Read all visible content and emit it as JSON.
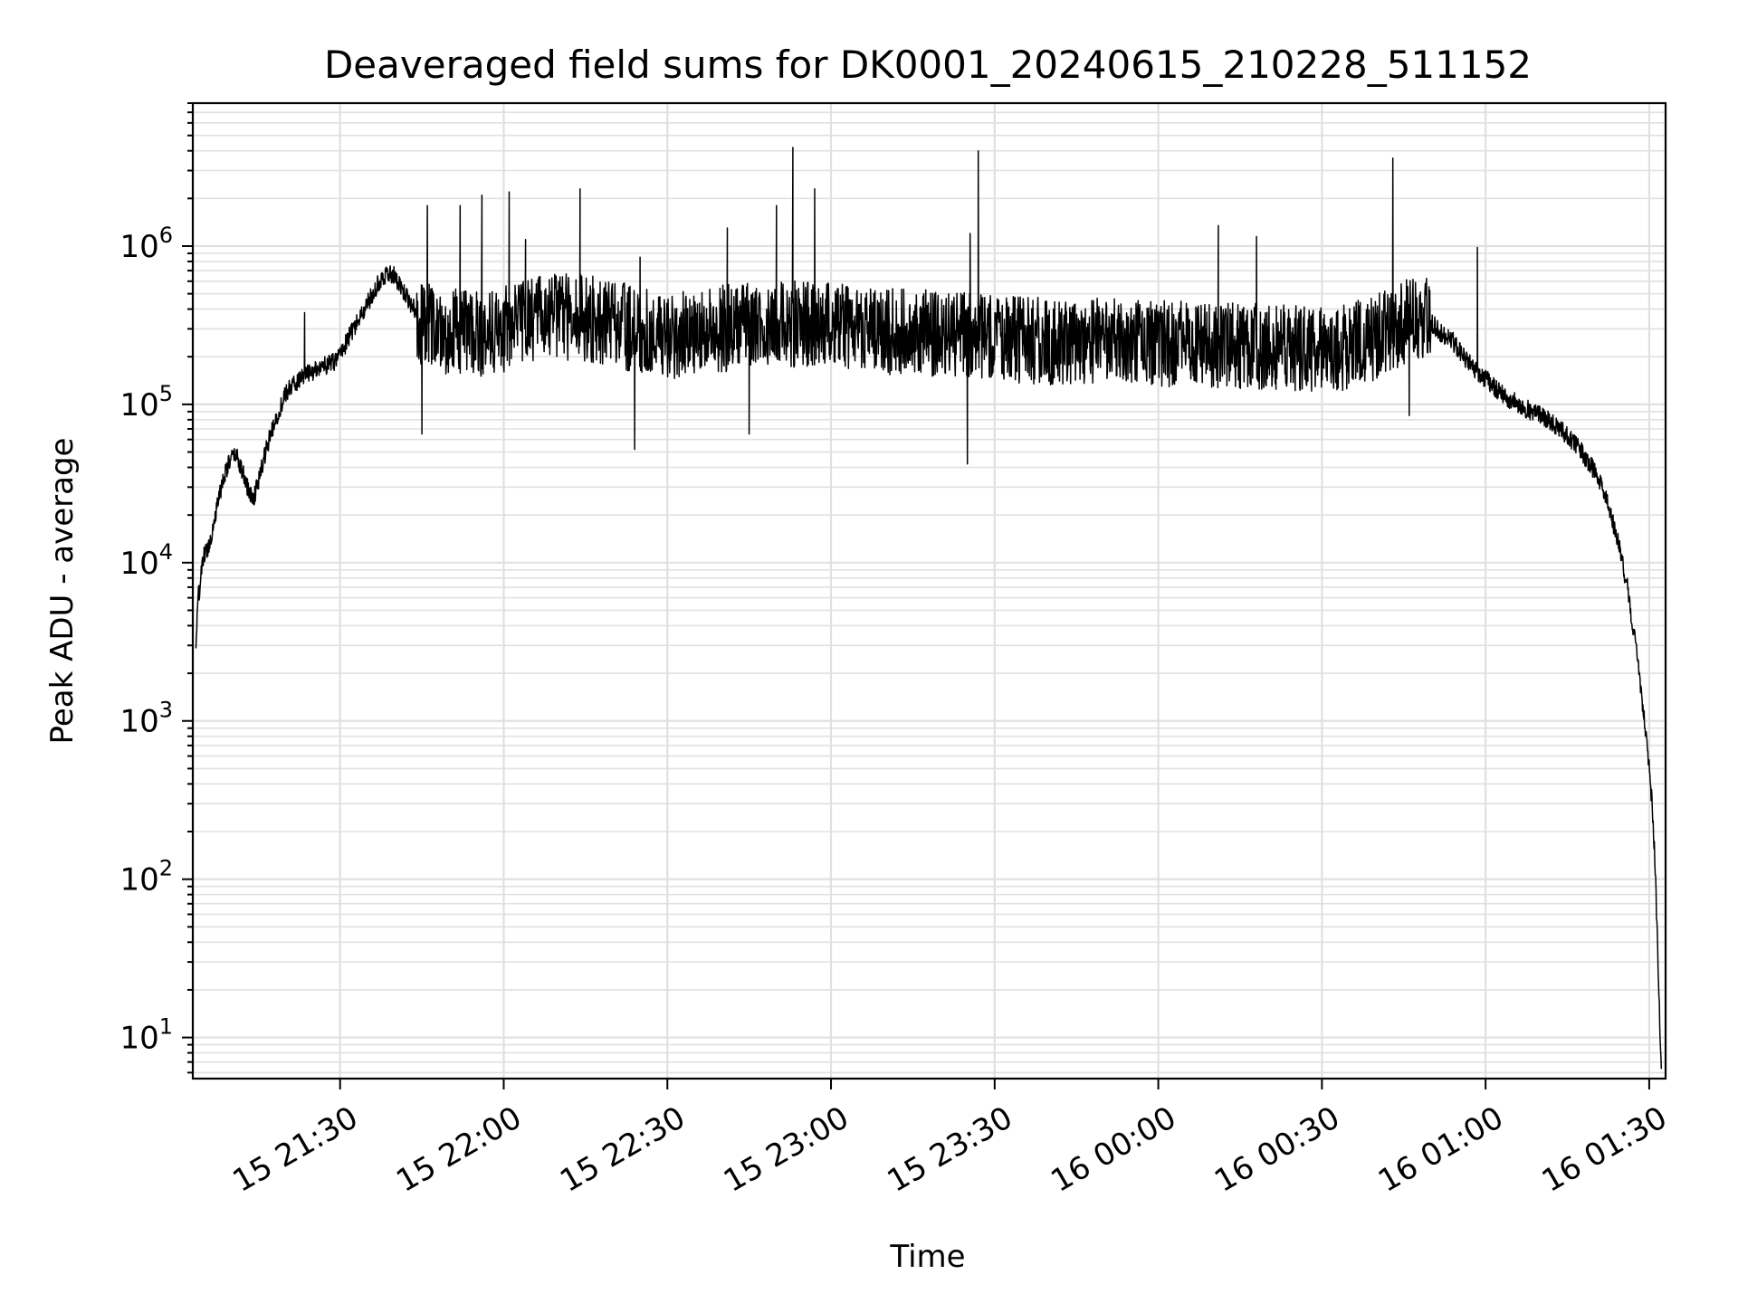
{
  "chart_data": {
    "type": "line",
    "title": "Deaveraged field sums for DK0001_20240615_210228_511152",
    "xlabel": "Time",
    "ylabel": "Peak ADU - average",
    "yscale": "log",
    "ylim": [
      5.5,
      8000000
    ],
    "xlim": [
      "2024-06-15 21:03:00",
      "2024-06-16 01:33:00"
    ],
    "grid": "on (major and minor)",
    "x_ticks": [
      {
        "t": "2024-06-15 21:30",
        "label": "15 21:30"
      },
      {
        "t": "2024-06-15 22:00",
        "label": "15 22:00"
      },
      {
        "t": "2024-06-15 22:30",
        "label": "15 22:30"
      },
      {
        "t": "2024-06-15 23:00",
        "label": "15 23:00"
      },
      {
        "t": "2024-06-15 23:30",
        "label": "15 23:30"
      },
      {
        "t": "2024-06-16 00:00",
        "label": "16 00:00"
      },
      {
        "t": "2024-06-16 00:30",
        "label": "16 00:30"
      },
      {
        "t": "2024-06-16 01:00",
        "label": "16 01:00"
      },
      {
        "t": "2024-06-16 01:30",
        "label": "16 01:30"
      }
    ],
    "y_ticks": [
      {
        "value": 10,
        "base": "10",
        "exp": "1"
      },
      {
        "value": 100,
        "base": "10",
        "exp": "2"
      },
      {
        "value": 1000,
        "base": "10",
        "exp": "3"
      },
      {
        "value": 10000,
        "base": "10",
        "exp": "4"
      },
      {
        "value": 100000,
        "base": "10",
        "exp": "5"
      },
      {
        "value": 1000000,
        "base": "10",
        "exp": "6"
      }
    ],
    "series": [
      {
        "color": "#000000",
        "points": [
          [
            "2024-06-15 21:03:30",
            2800
          ],
          [
            "2024-06-15 21:04:00",
            6000
          ],
          [
            "2024-06-15 21:05:00",
            11000
          ],
          [
            "2024-06-15 21:06:00",
            13000
          ],
          [
            "2024-06-15 21:07:00",
            19000
          ],
          [
            "2024-06-15 21:08:00",
            28000
          ],
          [
            "2024-06-15 21:09:00",
            38000
          ],
          [
            "2024-06-15 21:10:00",
            45000
          ],
          [
            "2024-06-15 21:11:00",
            48000
          ],
          [
            "2024-06-15 21:12:00",
            38000
          ],
          [
            "2024-06-15 21:13:00",
            30000
          ],
          [
            "2024-06-15 21:14:00",
            25000
          ],
          [
            "2024-06-15 21:15:00",
            32000
          ],
          [
            "2024-06-15 21:16:00",
            45000
          ],
          [
            "2024-06-15 21:17:00",
            60000
          ],
          [
            "2024-06-15 21:18:00",
            75000
          ],
          [
            "2024-06-15 21:19:00",
            95000
          ],
          [
            "2024-06-15 21:20:00",
            115000
          ],
          [
            "2024-06-15 21:21:00",
            130000
          ],
          [
            "2024-06-15 21:22:00",
            140000
          ],
          [
            "2024-06-15 21:23:00",
            145000
          ],
          [
            "2024-06-15 21:24:00",
            155000
          ],
          [
            "2024-06-15 21:25:00",
            160000
          ],
          [
            "2024-06-15 21:26:00",
            170000
          ],
          [
            "2024-06-15 21:27:00",
            175000
          ],
          [
            "2024-06-15 21:28:00",
            180000
          ],
          [
            "2024-06-15 21:29:00",
            185000
          ],
          [
            "2024-06-15 21:30:00",
            210000
          ],
          [
            "2024-06-15 21:31:00",
            240000
          ],
          [
            "2024-06-15 21:32:00",
            280000
          ],
          [
            "2024-06-15 21:33:00",
            320000
          ],
          [
            "2024-06-15 21:34:00",
            370000
          ],
          [
            "2024-06-15 21:35:00",
            430000
          ],
          [
            "2024-06-15 21:36:00",
            500000
          ],
          [
            "2024-06-15 21:37:00",
            580000
          ],
          [
            "2024-06-15 21:38:00",
            650000
          ],
          [
            "2024-06-15 21:39:00",
            690000
          ],
          [
            "2024-06-15 21:40:00",
            640000
          ],
          [
            "2024-06-15 21:41:00",
            560000
          ],
          [
            "2024-06-15 21:42:00",
            500000
          ],
          [
            "2024-06-15 21:43:00",
            430000
          ],
          [
            "2024-06-15 21:44:00",
            380000
          ],
          [
            "2024-06-15 21:45:00",
            330000
          ],
          [
            "2024-06-15 21:47:00",
            300000
          ],
          [
            "2024-06-15 21:50:00",
            290000
          ],
          [
            "2024-06-15 21:55:00",
            280000
          ],
          [
            "2024-06-15 22:00:00",
            300000
          ],
          [
            "2024-06-15 22:05:00",
            340000
          ],
          [
            "2024-06-15 22:10:00",
            360000
          ],
          [
            "2024-06-15 22:15:00",
            350000
          ],
          [
            "2024-06-15 22:20:00",
            330000
          ],
          [
            "2024-06-15 22:25:00",
            290000
          ],
          [
            "2024-06-15 22:30:00",
            270000
          ],
          [
            "2024-06-15 22:35:00",
            280000
          ],
          [
            "2024-06-15 22:40:00",
            300000
          ],
          [
            "2024-06-15 22:45:00",
            320000
          ],
          [
            "2024-06-15 22:50:00",
            330000
          ],
          [
            "2024-06-15 22:55:00",
            320000
          ],
          [
            "2024-06-15 23:00:00",
            310000
          ],
          [
            "2024-06-15 23:10:00",
            290000
          ],
          [
            "2024-06-15 23:20:00",
            280000
          ],
          [
            "2024-06-15 23:30:00",
            260000
          ],
          [
            "2024-06-15 23:40:00",
            250000
          ],
          [
            "2024-06-15 23:50:00",
            250000
          ],
          [
            "2024-06-16 00:00:00",
            240000
          ],
          [
            "2024-06-16 00:10:00",
            240000
          ],
          [
            "2024-06-16 00:20:00",
            230000
          ],
          [
            "2024-06-16 00:30:00",
            220000
          ],
          [
            "2024-06-16 00:35:00",
            230000
          ],
          [
            "2024-06-16 00:40:00",
            270000
          ],
          [
            "2024-06-16 00:44:00",
            320000
          ],
          [
            "2024-06-16 00:48:00",
            360000
          ],
          [
            "2024-06-16 00:50:00",
            330000
          ],
          [
            "2024-06-16 00:52:00",
            280000
          ],
          [
            "2024-06-16 00:54:00",
            250000
          ],
          [
            "2024-06-16 00:56:00",
            200000
          ],
          [
            "2024-06-16 00:58:00",
            165000
          ],
          [
            "2024-06-16 01:00:00",
            145000
          ],
          [
            "2024-06-16 01:02:00",
            125000
          ],
          [
            "2024-06-16 01:04:00",
            110000
          ],
          [
            "2024-06-16 01:06:00",
            100000
          ],
          [
            "2024-06-16 01:08:00",
            92000
          ],
          [
            "2024-06-16 01:10:00",
            85000
          ],
          [
            "2024-06-16 01:12:00",
            78000
          ],
          [
            "2024-06-16 01:14:00",
            68000
          ],
          [
            "2024-06-16 01:16:00",
            58000
          ],
          [
            "2024-06-16 01:18:00",
            48000
          ],
          [
            "2024-06-16 01:20:00",
            38000
          ],
          [
            "2024-06-16 01:22:00",
            26000
          ],
          [
            "2024-06-16 01:24:00",
            15000
          ],
          [
            "2024-06-16 01:26:00",
            7000
          ],
          [
            "2024-06-16 01:27:00",
            4000
          ],
          [
            "2024-06-16 01:28:00",
            2300
          ],
          [
            "2024-06-16 01:29:00",
            1100
          ],
          [
            "2024-06-16 01:30:00",
            500
          ],
          [
            "2024-06-16 01:30:30",
            300
          ],
          [
            "2024-06-16 01:31:00",
            150
          ],
          [
            "2024-06-16 01:31:30",
            40
          ],
          [
            "2024-06-16 01:32:00",
            10
          ],
          [
            "2024-06-16 01:32:15",
            6
          ]
        ]
      }
    ],
    "spikes": [
      [
        "2024-06-15 21:23:30",
        380000
      ],
      [
        "2024-06-15 21:46:00",
        1800000
      ],
      [
        "2024-06-15 21:45:00",
        65000
      ],
      [
        "2024-06-15 21:52:00",
        1800000
      ],
      [
        "2024-06-15 21:56:00",
        2100000
      ],
      [
        "2024-06-15 22:01:00",
        2200000
      ],
      [
        "2024-06-15 22:04:00",
        1100000
      ],
      [
        "2024-06-15 22:14:00",
        2300000
      ],
      [
        "2024-06-15 22:24:00",
        52000
      ],
      [
        "2024-06-15 22:25:00",
        850000
      ],
      [
        "2024-06-15 22:41:00",
        1300000
      ],
      [
        "2024-06-15 22:45:00",
        65000
      ],
      [
        "2024-06-15 22:50:00",
        1800000
      ],
      [
        "2024-06-15 22:53:00",
        4200000
      ],
      [
        "2024-06-15 22:57:00",
        2300000
      ],
      [
        "2024-06-15 23:25:00",
        42000
      ],
      [
        "2024-06-15 23:27:00",
        4000000
      ],
      [
        "2024-06-15 23:25:30",
        1200000
      ],
      [
        "2024-06-16 00:11:00",
        1350000
      ],
      [
        "2024-06-16 00:18:00",
        1150000
      ],
      [
        "2024-06-16 00:43:00",
        3600000
      ],
      [
        "2024-06-16 00:46:00",
        85000
      ],
      [
        "2024-06-16 00:58:30",
        980000
      ]
    ]
  }
}
